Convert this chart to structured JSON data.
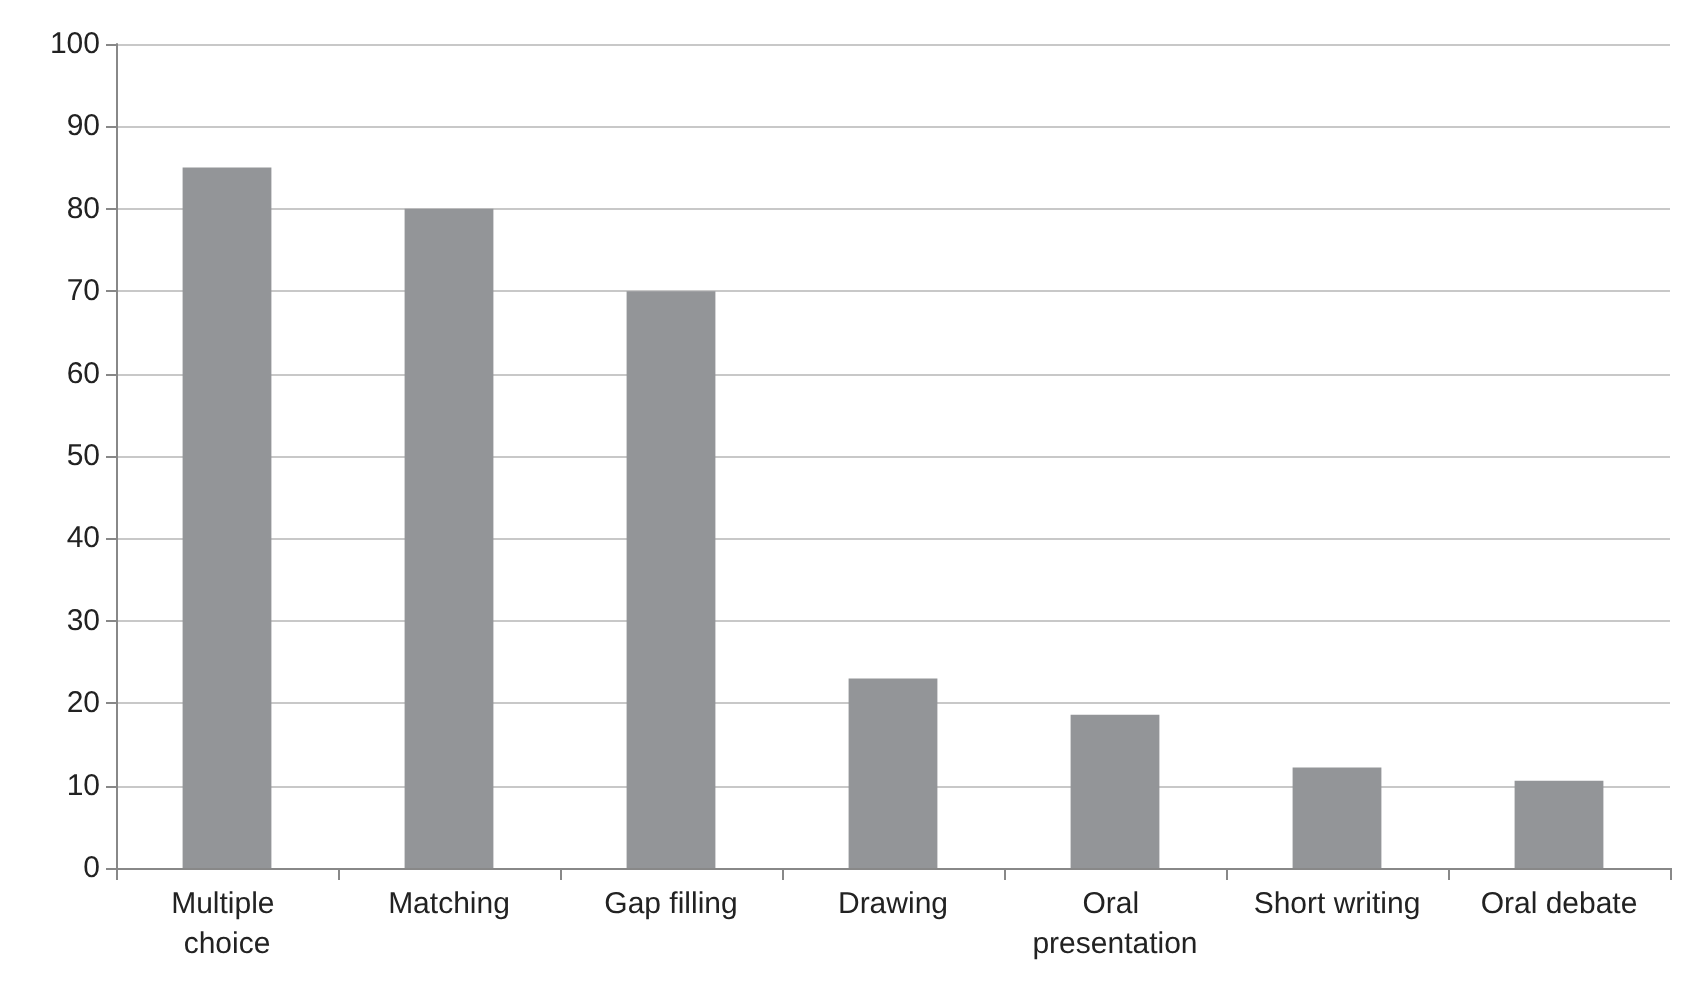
{
  "chart_data": {
    "type": "bar",
    "categories": [
      "Multiple choice",
      "Matching",
      "Gap filling",
      "Drawing",
      "Oral presentation",
      "Short writing",
      "Oral debate"
    ],
    "values": [
      85,
      80,
      70,
      23,
      18.6,
      12.2,
      10.6
    ],
    "color": "#939598",
    "ylim": [
      0,
      100
    ],
    "yticks": [
      0,
      10,
      20,
      30,
      40,
      50,
      60,
      70,
      80,
      90,
      100
    ],
    "grid": "y"
  }
}
